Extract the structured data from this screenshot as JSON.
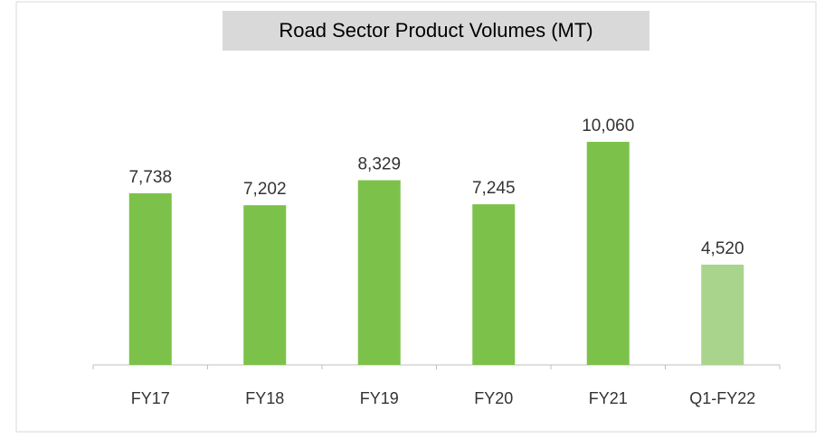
{
  "chart_data": {
    "type": "bar",
    "title": "Road Sector Product Volumes (MT)",
    "categories": [
      "FY17",
      "FY18",
      "FY19",
      "FY20",
      "FY21",
      "Q1-FY22"
    ],
    "values": [
      7738,
      7202,
      8329,
      7245,
      10060,
      4520
    ],
    "value_labels": [
      "7,738",
      "7,202",
      "8,329",
      "7,245",
      "10,060",
      "4,520"
    ],
    "colors": [
      "#7cc24a",
      "#7cc24a",
      "#7cc24a",
      "#7cc24a",
      "#7cc24a",
      "#a8d48c"
    ],
    "ylim": [
      0,
      12000
    ],
    "grid": false
  }
}
